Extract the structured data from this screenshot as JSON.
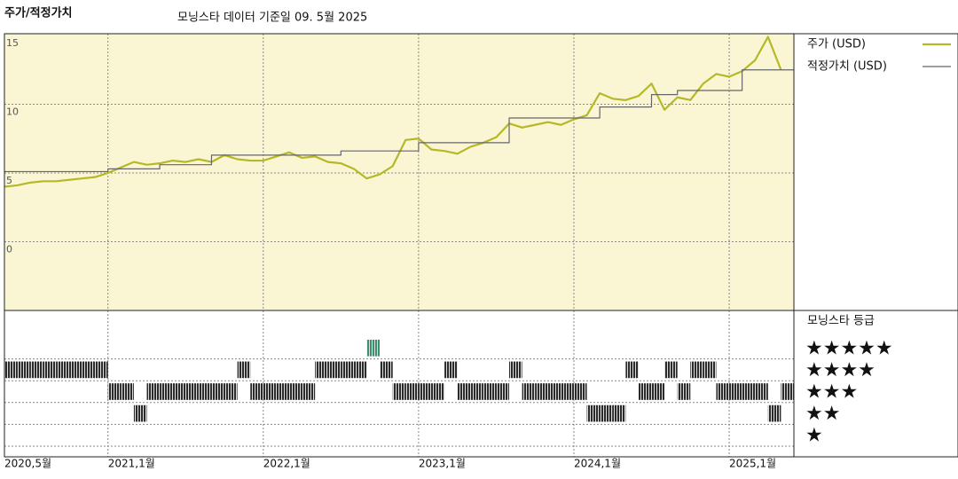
{
  "chart_data": [
    {
      "type": "line",
      "title": "주가/적정가치",
      "subtitle": "모닝스타 데이터 기준일 09. 5월 2025",
      "background": "#faf6d4",
      "grid": true,
      "xlim": [
        "2020-05",
        "2025-06"
      ],
      "xticks": [
        {
          "value": "2020-05",
          "label": "2020,5월"
        },
        {
          "value": "2021-01",
          "label": "2021,1월"
        },
        {
          "value": "2022-01",
          "label": "2022,1월"
        },
        {
          "value": "2023-01",
          "label": "2023,1월"
        },
        {
          "value": "2024-01",
          "label": "2024,1월"
        },
        {
          "value": "2025-01",
          "label": "2025,1월"
        }
      ],
      "ylim": [
        -5,
        15
      ],
      "yticks": [
        0,
        5,
        10,
        15
      ],
      "x": [
        "2020-05",
        "2020-06",
        "2020-07",
        "2020-08",
        "2020-09",
        "2020-10",
        "2020-11",
        "2020-12",
        "2021-01",
        "2021-02",
        "2021-03",
        "2021-04",
        "2021-05",
        "2021-06",
        "2021-07",
        "2021-08",
        "2021-09",
        "2021-10",
        "2021-11",
        "2021-12",
        "2022-01",
        "2022-02",
        "2022-03",
        "2022-04",
        "2022-05",
        "2022-06",
        "2022-07",
        "2022-08",
        "2022-09",
        "2022-10",
        "2022-11",
        "2022-12",
        "2023-01",
        "2023-02",
        "2023-03",
        "2023-04",
        "2023-05",
        "2023-06",
        "2023-07",
        "2023-08",
        "2023-09",
        "2023-10",
        "2023-11",
        "2023-12",
        "2024-01",
        "2024-02",
        "2024-03",
        "2024-04",
        "2024-05",
        "2024-06",
        "2024-07",
        "2024-08",
        "2024-09",
        "2024-10",
        "2024-11",
        "2024-12",
        "2025-01",
        "2025-02",
        "2025-03",
        "2025-04",
        "2025-05"
      ],
      "series": [
        {
          "name": "주가 (USD)",
          "color": "#b5b827",
          "width": 2.2,
          "values": [
            4.0,
            4.1,
            4.3,
            4.4,
            4.4,
            4.5,
            4.6,
            4.7,
            5.0,
            5.4,
            5.8,
            5.6,
            5.7,
            5.9,
            5.8,
            6.0,
            5.8,
            6.3,
            6.0,
            5.9,
            5.9,
            6.2,
            6.5,
            6.1,
            6.2,
            5.8,
            5.7,
            5.3,
            4.6,
            4.9,
            5.5,
            7.4,
            7.5,
            6.7,
            6.6,
            6.4,
            6.9,
            7.2,
            7.6,
            8.6,
            8.3,
            8.5,
            8.7,
            8.5,
            8.9,
            9.2,
            10.8,
            10.4,
            10.3,
            10.6,
            11.5,
            9.6,
            10.5,
            10.3,
            11.5,
            12.2,
            12.0,
            12.4,
            13.2,
            14.9,
            12.5
          ]
        },
        {
          "name": "적정가치 (USD)",
          "color": "#666666",
          "width": 1.2,
          "step": true,
          "values": [
            5.1,
            5.1,
            5.1,
            5.1,
            5.1,
            5.1,
            5.1,
            5.1,
            5.3,
            5.3,
            5.3,
            5.3,
            5.6,
            5.6,
            5.6,
            5.6,
            6.3,
            6.3,
            6.3,
            6.3,
            6.3,
            6.3,
            6.3,
            6.3,
            6.3,
            6.3,
            6.6,
            6.6,
            6.6,
            6.6,
            6.6,
            6.6,
            7.2,
            7.2,
            7.2,
            7.2,
            7.2,
            7.2,
            7.2,
            9.0,
            9.0,
            9.0,
            9.0,
            9.0,
            9.0,
            9.0,
            9.8,
            9.8,
            9.8,
            9.8,
            10.7,
            10.7,
            11.0,
            11.0,
            11.0,
            11.0,
            11.0,
            12.5,
            12.5,
            12.5,
            12.5
          ]
        }
      ]
    },
    {
      "type": "strip",
      "title": "모닝스타 등급",
      "ylim": [
        0.5,
        5.5
      ],
      "yticks": [
        {
          "value": 1,
          "label": "★"
        },
        {
          "value": 2,
          "label": "★★"
        },
        {
          "value": 3,
          "label": "★★★"
        },
        {
          "value": 4,
          "label": "★★★★"
        },
        {
          "value": 5,
          "label": "★★★★★"
        }
      ],
      "colors": [
        "#2b2b2b",
        "#2b2b2b",
        "#2b2b2b",
        "#2b2b2b",
        "#3d8f6e"
      ],
      "values": [
        4,
        4,
        4,
        4,
        4,
        4,
        4,
        4,
        3,
        3,
        2,
        3,
        3,
        3,
        3,
        3,
        3,
        3,
        4,
        3,
        3,
        3,
        3,
        3,
        4,
        4,
        4,
        4,
        5,
        4,
        3,
        3,
        3,
        3,
        4,
        3,
        3,
        3,
        3,
        4,
        3,
        3,
        3,
        3,
        3,
        2,
        2,
        2,
        4,
        3,
        3,
        4,
        3,
        4,
        4,
        3,
        3,
        3,
        3,
        2,
        3
      ]
    }
  ]
}
